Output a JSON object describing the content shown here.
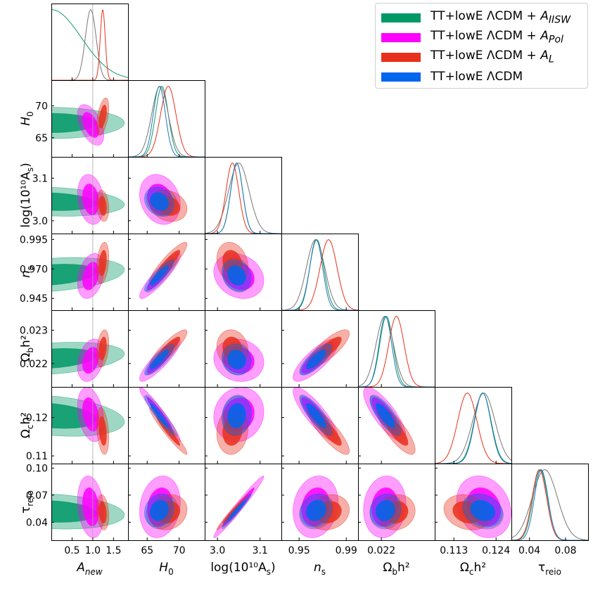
{
  "chart_data": {
    "type": "triangle",
    "title": "",
    "parameters": [
      {
        "key": "A_new",
        "label": "A",
        "label_sub": "new",
        "range": [
          0.0,
          1.85
        ],
        "ticks": [
          0.5,
          1.0,
          1.5
        ],
        "tick_labels": [
          "0.5",
          "1.0",
          "1.5"
        ],
        "reference_line": 1.0
      },
      {
        "key": "H0",
        "label": "H",
        "label_sub": "0",
        "range": [
          62.0,
          74.0
        ],
        "ticks": [
          65,
          70
        ],
        "tick_labels": [
          "65",
          "70"
        ]
      },
      {
        "key": "logA",
        "label": "log(10¹⁰A",
        "label_sub": "s",
        "label_tail": ")",
        "range": [
          2.97,
          3.15
        ],
        "ticks": [
          3.0,
          3.1
        ],
        "tick_labels": [
          "3.0",
          "3.1"
        ]
      },
      {
        "key": "ns",
        "label": "n",
        "label_sub": "s",
        "range": [
          0.935,
          1.0
        ],
        "ticks": [
          0.945,
          0.97,
          0.995
        ],
        "tick_labels": [
          "0.945",
          "0.970",
          "0.995"
        ],
        "x_ticks": [
          0.95,
          0.99
        ],
        "x_tick_labels": [
          "0.95",
          "0.99"
        ]
      },
      {
        "key": "ombh2",
        "label": "Ω",
        "label_sub": "b",
        "label_tail": "h²",
        "range": [
          0.0213,
          0.0236
        ],
        "ticks": [
          0.022,
          0.023
        ],
        "tick_labels": [
          "0.022",
          "0.023"
        ],
        "x_ticks": [
          0.022
        ],
        "x_tick_labels": [
          "0.022"
        ]
      },
      {
        "key": "omch2",
        "label": "Ω",
        "label_sub": "c",
        "label_tail": "h²",
        "range": [
          0.108,
          0.128
        ],
        "ticks": [
          0.11,
          0.12
        ],
        "tick_labels": [
          "0.11",
          "0.12"
        ],
        "x_ticks": [
          0.113,
          0.124
        ],
        "x_tick_labels": [
          "0.113",
          "0.124"
        ]
      },
      {
        "key": "tau",
        "label": "τ",
        "label_sub": "reio",
        "range": [
          0.02,
          0.105
        ],
        "ticks": [
          0.04,
          0.07,
          0.1
        ],
        "tick_labels": [
          "0.04",
          "0.07",
          "0.10"
        ],
        "x_ticks": [
          0.04,
          0.08
        ],
        "x_tick_labels": [
          "0.04",
          "0.08"
        ]
      }
    ],
    "series": [
      {
        "name": "TT+lowE ΛCDM + A_IISW",
        "legend_text": "TT+lowE ΛCDM + ",
        "legend_sym": "A",
        "legend_sub": "IISW",
        "color": "#009966",
        "line_color": "#139a6b",
        "mean": {
          "A_new": 0.0,
          "H0": 67.3,
          "logA": 3.045,
          "ns": 0.965,
          "ombh2": 0.02215,
          "omch2": 0.1205,
          "tau": 0.052
        },
        "sigma": {
          "A_new": 0.72,
          "H0": 1.0,
          "logA": 0.014,
          "ns": 0.006,
          "ombh2": 0.0002,
          "omch2": 0.0022,
          "tau": 0.008
        },
        "corr": {
          "A_new|H0": 0.0
        }
      },
      {
        "name": "TT+lowE ΛCDM + A_Pol",
        "legend_text": "TT+lowE ΛCDM + ",
        "legend_sym": "A",
        "legend_sub": "Pol",
        "color": "#ff00ff",
        "line_color": "#777777",
        "mean": {
          "A_new": 0.95,
          "H0": 67.0,
          "logA": 3.05,
          "ns": 0.964,
          "ombh2": 0.0221,
          "omch2": 0.1208,
          "tau": 0.057
        },
        "sigma": {
          "A_new": 0.13,
          "H0": 1.3,
          "logA": 0.024,
          "ns": 0.0078,
          "ombh2": 0.00026,
          "omch2": 0.0029,
          "tau": 0.014
        },
        "corr": {
          "A_new|H0": -0.5
        }
      },
      {
        "name": "TT+lowE ΛCDM + A_L",
        "legend_text": "TT+lowE ΛCDM + ",
        "legend_sym": "A",
        "legend_sub": "L",
        "color": "#e8301c",
        "line_color": "#e8301c",
        "mean": {
          "A_new": 1.24,
          "H0": 68.3,
          "logA": 3.035,
          "ns": 0.975,
          "ombh2": 0.02245,
          "omch2": 0.1165,
          "tau": 0.051
        },
        "sigma": {
          "A_new": 0.06,
          "H0": 1.2,
          "logA": 0.015,
          "ns": 0.0072,
          "ombh2": 0.00023,
          "omch2": 0.0025,
          "tau": 0.008
        },
        "corr": {
          "A_new|H0": 0.5
        }
      },
      {
        "name": "TT+lowE ΛCDM",
        "legend_text": "TT+lowE ΛCDM",
        "legend_sym": "",
        "legend_sub": "",
        "color": "#0066ee",
        "line_color": "#1f77b4",
        "mean": {
          "H0": 66.9,
          "logA": 3.045,
          "ns": 0.9645,
          "ombh2": 0.02212,
          "omch2": 0.1205,
          "tau": 0.053
        },
        "sigma": {
          "H0": 0.95,
          "logA": 0.014,
          "ns": 0.0055,
          "ombh2": 0.00019,
          "omch2": 0.0021,
          "tau": 0.0075
        },
        "corr": {}
      }
    ],
    "correlations": {
      "H0|logA": -0.2,
      "H0|ns": 0.9,
      "H0|ombh2": 0.88,
      "H0|omch2": -0.96,
      "H0|tau": 0.15,
      "logA|ns": -0.2,
      "logA|ombh2": -0.1,
      "logA|omch2": 0.1,
      "logA|tau": 0.98,
      "ns|ombh2": 0.8,
      "ns|omch2": -0.85,
      "ns|tau": 0.15,
      "ombh2|omch2": -0.8,
      "ombh2|tau": 0.1,
      "omch2|tau": -0.2,
      "A_new|logA": -0.2,
      "A_new|ns": 0.3,
      "A_new|ombh2": 0.3,
      "A_new|omch2": -0.3,
      "A_new|tau": -0.2
    },
    "legend_position": "top-right",
    "contour_levels": [
      "68%",
      "95%"
    ]
  }
}
